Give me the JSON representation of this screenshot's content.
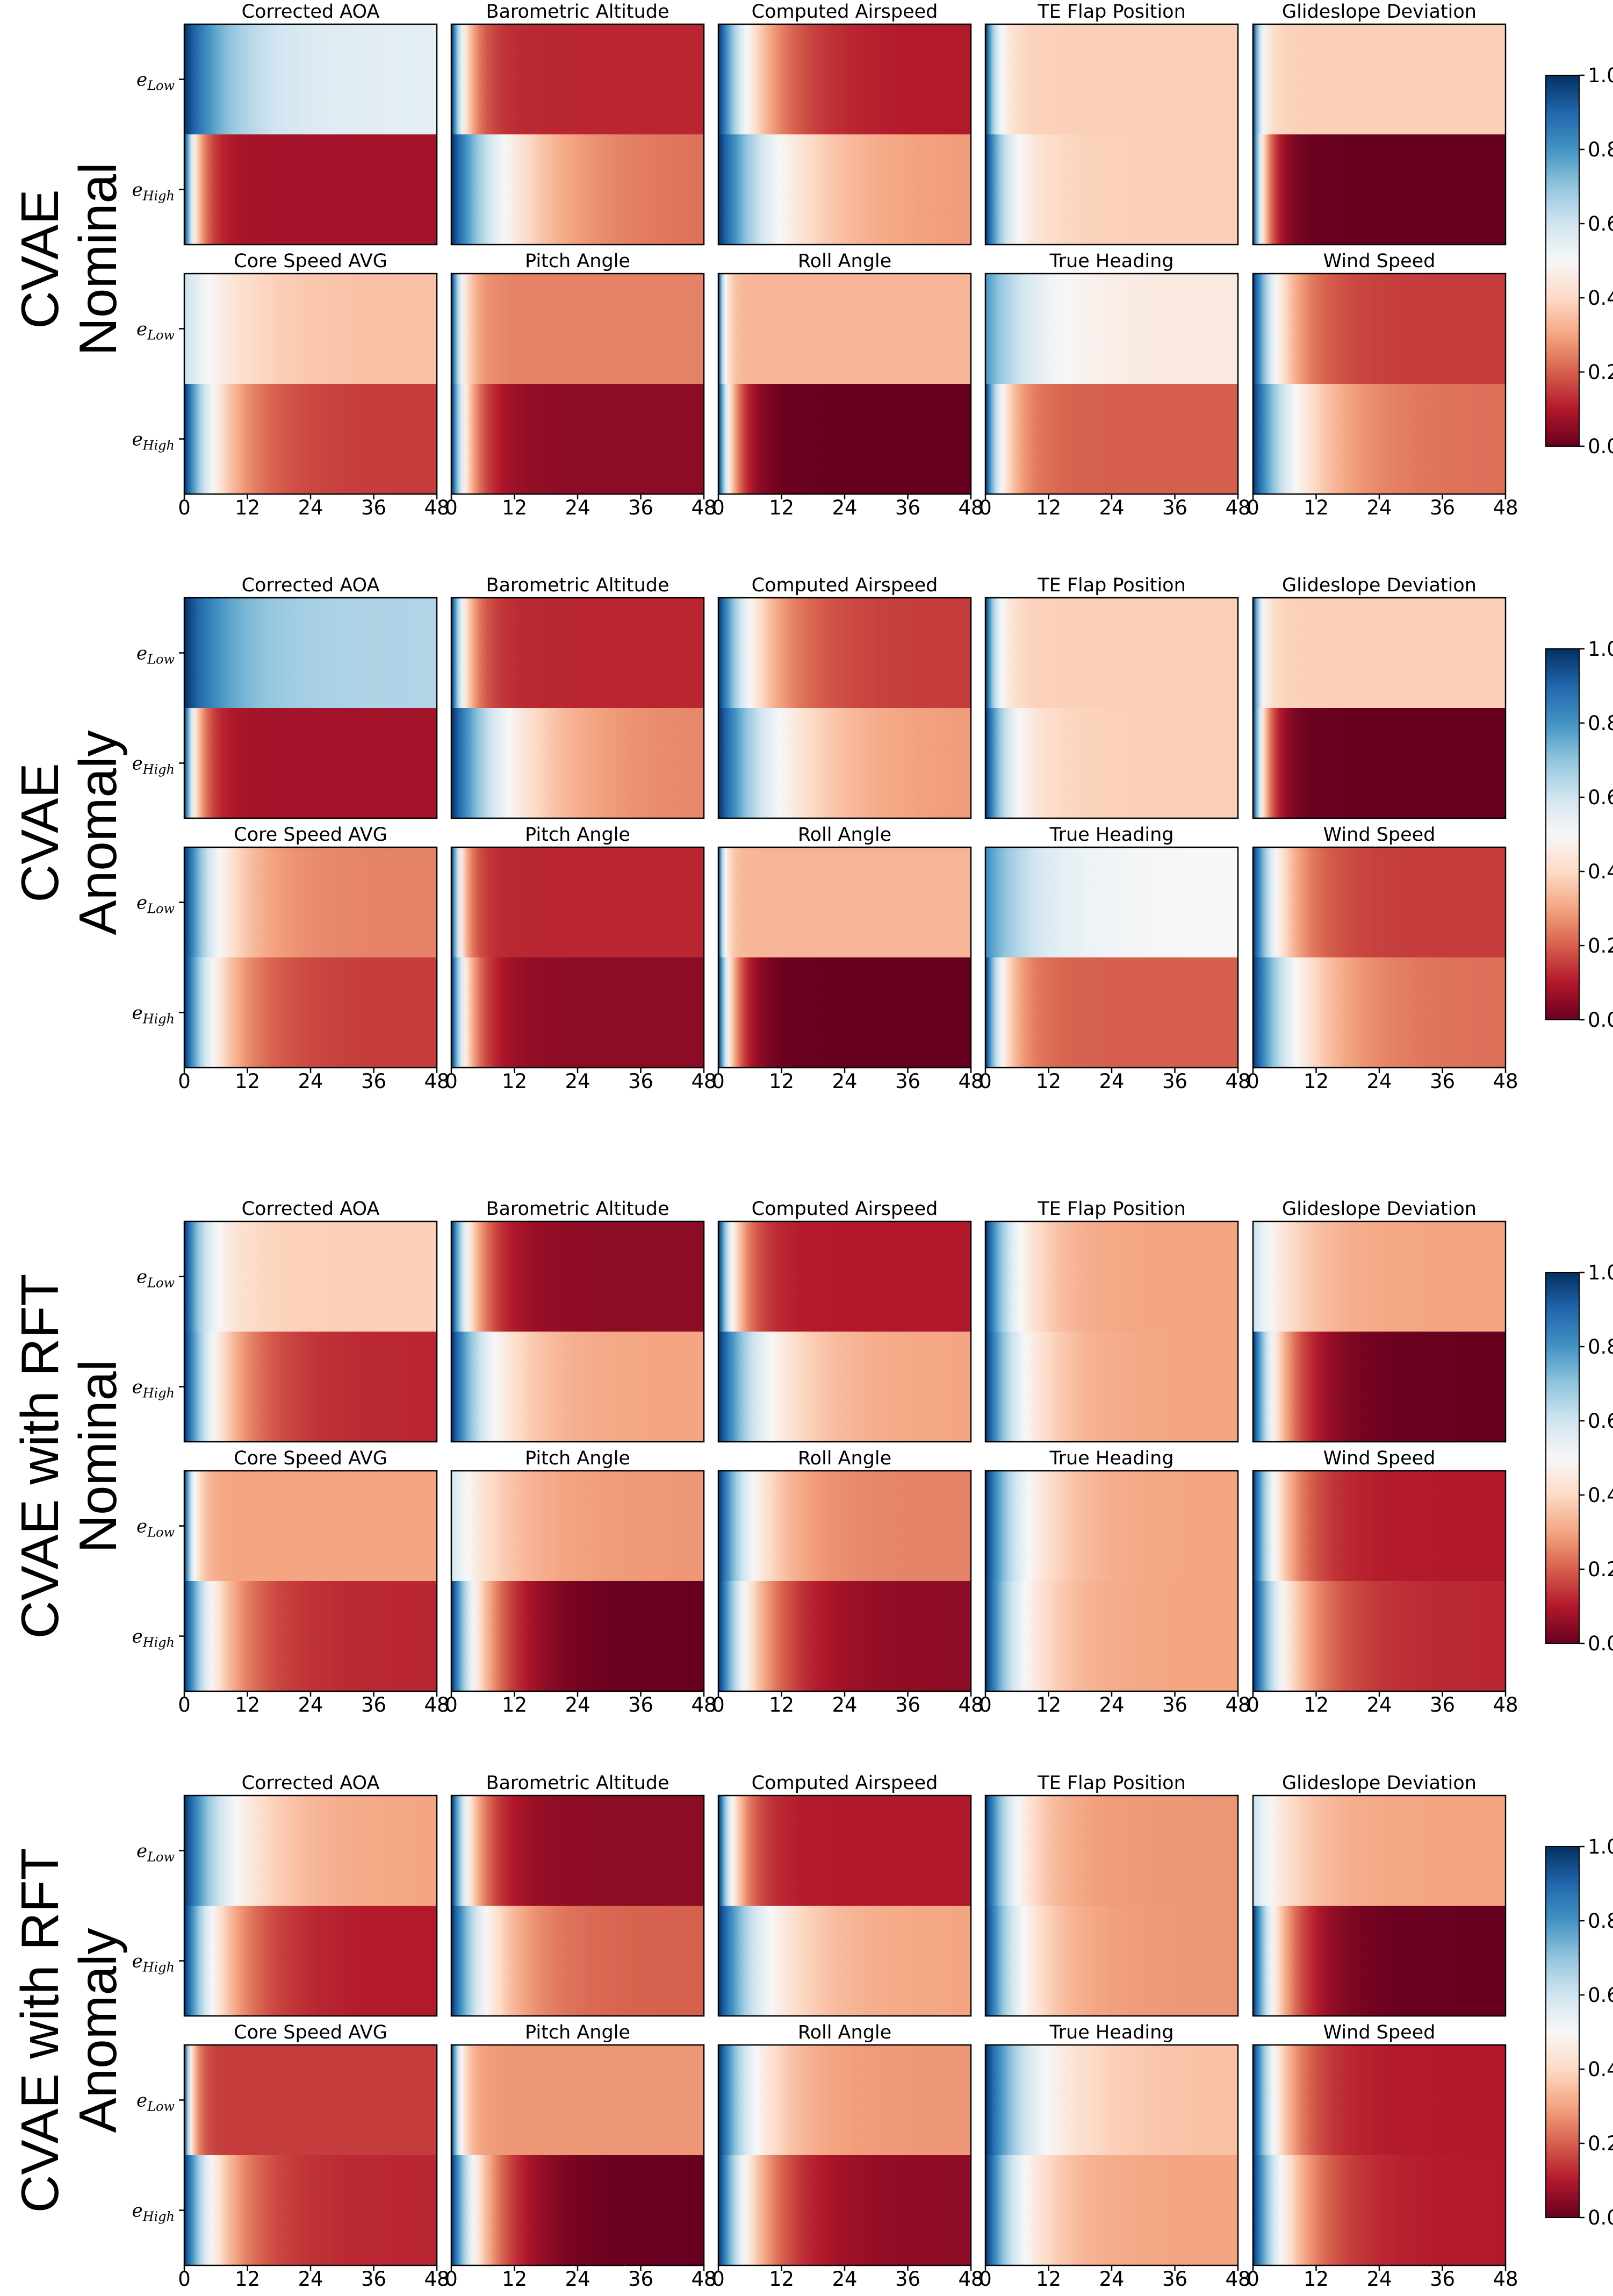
{
  "chart_data": {
    "type": "heatmap",
    "x_ticks": [
      0,
      12,
      24,
      36,
      48
    ],
    "x_range": [
      0,
      48
    ],
    "row_labels": [
      {
        "base": "e",
        "sub": "Low"
      },
      {
        "base": "e",
        "sub": "High"
      }
    ],
    "colorbar": {
      "colormap": "RdBu",
      "range": [
        0.0,
        1.0
      ],
      "ticks": [
        "0.0",
        "0.2",
        "0.4",
        "0.6",
        "0.8",
        "1.0"
      ]
    },
    "colors": {
      "dark_red": "#67001f",
      "white": "#f7f7f7",
      "dark_blue": "#053061"
    },
    "groups": [
      {
        "label_lines": [
          "CVAE",
          "Nominal"
        ],
        "panels": [
          {
            "title": "Corrected AOA",
            "low": {
              "start": 1.0,
              "end": 0.55,
              "rate": 1.0
            },
            "high": {
              "start": 1.0,
              "end": 0.08,
              "rate": 3.5
            }
          },
          {
            "title": "Barometric Altitude",
            "low": {
              "start": 1.0,
              "end": 0.12,
              "rate": 3.0
            },
            "high": {
              "start": 1.0,
              "end": 0.22,
              "rate": 0.8
            }
          },
          {
            "title": "Computed Airspeed",
            "low": {
              "start": 1.0,
              "end": 0.1,
              "rate": 1.2
            },
            "high": {
              "start": 1.0,
              "end": 0.28,
              "rate": 0.8
            }
          },
          {
            "title": "TE Flap Position",
            "low": {
              "start": 1.0,
              "end": 0.38,
              "rate": 4.0
            },
            "high": {
              "start": 1.0,
              "end": 0.38,
              "rate": 2.0
            }
          },
          {
            "title": "Glideslope Deviation",
            "low": {
              "start": 1.0,
              "end": 0.38,
              "rate": 6.0
            },
            "high": {
              "start": 1.0,
              "end": 0.0,
              "rate": 3.5
            }
          },
          {
            "title": "Core Speed AVG",
            "low": {
              "start": 0.62,
              "end": 0.35,
              "rate": 1.0
            },
            "high": {
              "start": 1.0,
              "end": 0.15,
              "rate": 1.3
            }
          },
          {
            "title": "Pitch Angle",
            "low": {
              "start": 1.0,
              "end": 0.25,
              "rate": 4.0
            },
            "high": {
              "start": 1.0,
              "end": 0.05,
              "rate": 2.5
            }
          },
          {
            "title": "Roll Angle",
            "low": {
              "start": 1.0,
              "end": 0.33,
              "rate": 8.0
            },
            "high": {
              "start": 1.0,
              "end": 0.0,
              "rate": 3.0
            }
          },
          {
            "title": "True Heading",
            "low": {
              "start": 0.8,
              "end": 0.45,
              "rate": 1.0
            },
            "high": {
              "start": 1.0,
              "end": 0.2,
              "rate": 2.5
            }
          },
          {
            "title": "Wind Speed",
            "low": {
              "start": 1.0,
              "end": 0.15,
              "rate": 1.6
            },
            "high": {
              "start": 1.0,
              "end": 0.22,
              "rate": 1.0
            }
          }
        ]
      },
      {
        "label_lines": [
          "CVAE",
          "Anomaly"
        ],
        "panels": [
          {
            "title": "Corrected AOA",
            "low": {
              "start": 1.0,
              "end": 0.65,
              "rate": 1.0
            },
            "high": {
              "start": 1.0,
              "end": 0.08,
              "rate": 3.5
            }
          },
          {
            "title": "Barometric Altitude",
            "low": {
              "start": 1.0,
              "end": 0.12,
              "rate": 3.0
            },
            "high": {
              "start": 1.0,
              "end": 0.25,
              "rate": 0.8
            }
          },
          {
            "title": "Computed Airspeed",
            "low": {
              "start": 1.0,
              "end": 0.15,
              "rate": 1.2
            },
            "high": {
              "start": 1.0,
              "end": 0.28,
              "rate": 0.8
            }
          },
          {
            "title": "TE Flap Position",
            "low": {
              "start": 1.0,
              "end": 0.38,
              "rate": 4.0
            },
            "high": {
              "start": 1.0,
              "end": 0.38,
              "rate": 2.0
            }
          },
          {
            "title": "Glideslope Deviation",
            "low": {
              "start": 1.0,
              "end": 0.38,
              "rate": 6.0
            },
            "high": {
              "start": 1.0,
              "end": 0.0,
              "rate": 3.5
            }
          },
          {
            "title": "Core Speed AVG",
            "low": {
              "start": 1.0,
              "end": 0.25,
              "rate": 1.3
            },
            "high": {
              "start": 1.0,
              "end": 0.15,
              "rate": 1.3
            }
          },
          {
            "title": "Pitch Angle",
            "low": {
              "start": 1.0,
              "end": 0.12,
              "rate": 4.0
            },
            "high": {
              "start": 1.0,
              "end": 0.05,
              "rate": 2.5
            }
          },
          {
            "title": "Roll Angle",
            "low": {
              "start": 1.0,
              "end": 0.33,
              "rate": 8.0
            },
            "high": {
              "start": 1.0,
              "end": 0.0,
              "rate": 3.0
            }
          },
          {
            "title": "True Heading",
            "low": {
              "start": 0.82,
              "end": 0.5,
              "rate": 1.0
            },
            "high": {
              "start": 1.0,
              "end": 0.2,
              "rate": 2.5
            }
          },
          {
            "title": "Wind Speed",
            "low": {
              "start": 1.0,
              "end": 0.15,
              "rate": 1.6
            },
            "high": {
              "start": 1.0,
              "end": 0.22,
              "rate": 1.0
            }
          }
        ]
      },
      {
        "label_lines": [
          "CVAE with RFT",
          "Nominal"
        ],
        "panels": [
          {
            "title": "Corrected AOA",
            "low": {
              "start": 1.0,
              "end": 0.38,
              "rate": 2.0
            },
            "high": {
              "start": 1.0,
              "end": 0.12,
              "rate": 1.2
            }
          },
          {
            "title": "Barometric Altitude",
            "low": {
              "start": 1.0,
              "end": 0.05,
              "rate": 2.0
            },
            "high": {
              "start": 1.0,
              "end": 0.3,
              "rate": 1.2
            }
          },
          {
            "title": "Computed Airspeed",
            "low": {
              "start": 1.0,
              "end": 0.1,
              "rate": 2.5
            },
            "high": {
              "start": 1.0,
              "end": 0.3,
              "rate": 1.0
            }
          },
          {
            "title": "TE Flap Position",
            "low": {
              "start": 1.0,
              "end": 0.3,
              "rate": 1.5
            },
            "high": {
              "start": 1.0,
              "end": 0.3,
              "rate": 1.3
            }
          },
          {
            "title": "Glideslope Deviation",
            "low": {
              "start": 0.62,
              "end": 0.3,
              "rate": 1.2
            },
            "high": {
              "start": 1.0,
              "end": 0.0,
              "rate": 1.5
            }
          },
          {
            "title": "Core Speed AVG",
            "low": {
              "start": 1.0,
              "end": 0.3,
              "rate": 5.0
            },
            "high": {
              "start": 1.0,
              "end": 0.12,
              "rate": 1.3
            }
          },
          {
            "title": "Pitch Angle",
            "low": {
              "start": 0.6,
              "end": 0.28,
              "rate": 1.0
            },
            "high": {
              "start": 1.0,
              "end": 0.0,
              "rate": 1.3
            }
          },
          {
            "title": "Roll Angle",
            "low": {
              "start": 1.0,
              "end": 0.25,
              "rate": 1.3
            },
            "high": {
              "start": 1.0,
              "end": 0.05,
              "rate": 1.2
            }
          },
          {
            "title": "True Heading",
            "low": {
              "start": 1.0,
              "end": 0.3,
              "rate": 1.2
            },
            "high": {
              "start": 1.0,
              "end": 0.3,
              "rate": 1.3
            }
          },
          {
            "title": "Wind Speed",
            "low": {
              "start": 1.0,
              "end": 0.1,
              "rate": 1.6
            },
            "high": {
              "start": 1.0,
              "end": 0.12,
              "rate": 1.2
            }
          }
        ]
      },
      {
        "label_lines": [
          "CVAE with RFT",
          "Anomaly"
        ],
        "panels": [
          {
            "title": "Corrected AOA",
            "low": {
              "start": 1.0,
              "end": 0.3,
              "rate": 1.0
            },
            "high": {
              "start": 1.0,
              "end": 0.1,
              "rate": 1.2
            }
          },
          {
            "title": "Barometric Altitude",
            "low": {
              "start": 1.0,
              "end": 0.05,
              "rate": 2.0
            },
            "high": {
              "start": 1.0,
              "end": 0.2,
              "rate": 1.2
            }
          },
          {
            "title": "Computed Airspeed",
            "low": {
              "start": 1.0,
              "end": 0.1,
              "rate": 2.5
            },
            "high": {
              "start": 1.0,
              "end": 0.3,
              "rate": 1.0
            }
          },
          {
            "title": "TE Flap Position",
            "low": {
              "start": 1.0,
              "end": 0.28,
              "rate": 1.5
            },
            "high": {
              "start": 1.0,
              "end": 0.28,
              "rate": 1.3
            }
          },
          {
            "title": "Glideslope Deviation",
            "low": {
              "start": 0.62,
              "end": 0.3,
              "rate": 1.2
            },
            "high": {
              "start": 1.0,
              "end": 0.0,
              "rate": 1.5
            }
          },
          {
            "title": "Core Speed AVG",
            "low": {
              "start": 1.0,
              "end": 0.15,
              "rate": 6.0
            },
            "high": {
              "start": 1.0,
              "end": 0.12,
              "rate": 1.3
            }
          },
          {
            "title": "Pitch Angle",
            "low": {
              "start": 1.0,
              "end": 0.28,
              "rate": 5.0
            },
            "high": {
              "start": 1.0,
              "end": 0.0,
              "rate": 1.3
            }
          },
          {
            "title": "Roll Angle",
            "low": {
              "start": 1.0,
              "end": 0.28,
              "rate": 1.3
            },
            "high": {
              "start": 1.0,
              "end": 0.05,
              "rate": 1.2
            }
          },
          {
            "title": "True Heading",
            "low": {
              "start": 1.0,
              "end": 0.35,
              "rate": 1.0
            },
            "high": {
              "start": 1.0,
              "end": 0.3,
              "rate": 1.3
            }
          },
          {
            "title": "Wind Speed",
            "low": {
              "start": 1.0,
              "end": 0.1,
              "rate": 1.6
            },
            "high": {
              "start": 1.0,
              "end": 0.1,
              "rate": 1.2
            }
          }
        ]
      }
    ]
  }
}
